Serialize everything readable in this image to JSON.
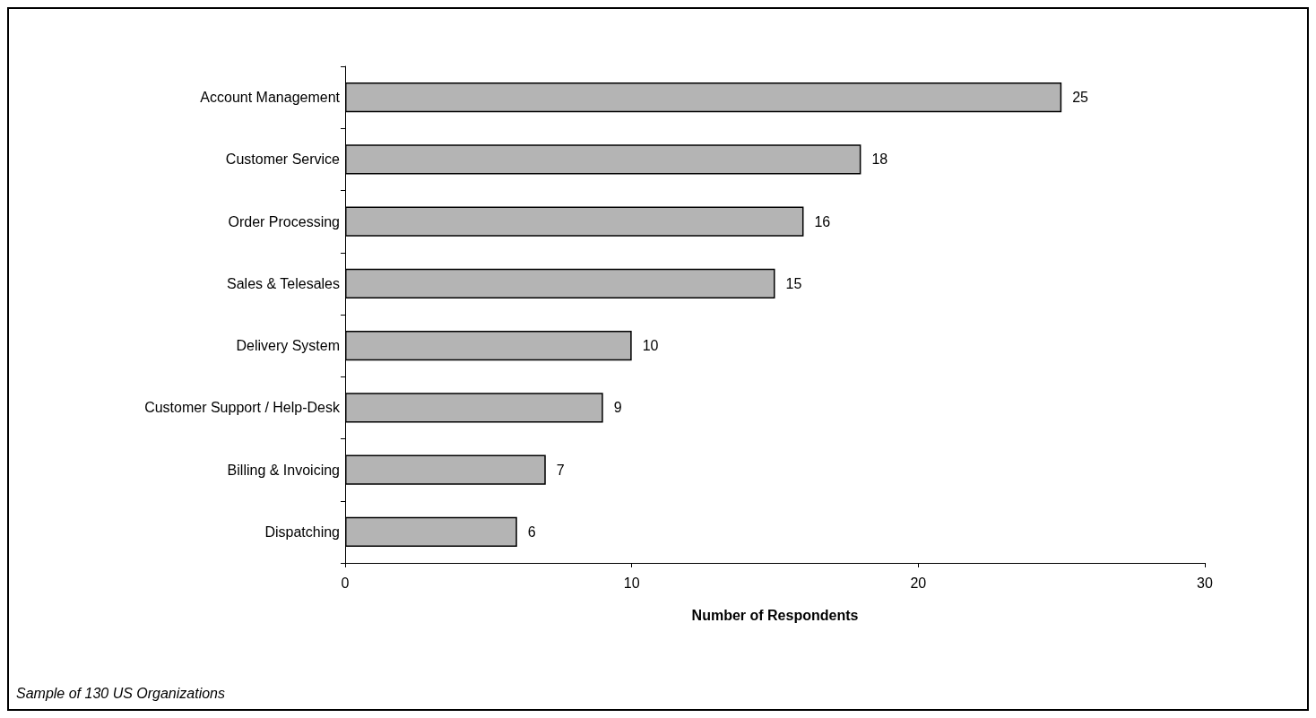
{
  "chart_data": {
    "type": "bar",
    "orientation": "horizontal",
    "categories": [
      "Account Management",
      "Customer Service",
      "Order Processing",
      "Sales & Telesales",
      "Delivery System",
      "Customer Support / Help-Desk",
      "Billing & Invoicing",
      "Dispatching"
    ],
    "values": [
      25,
      18,
      16,
      15,
      10,
      9,
      7,
      6
    ],
    "color": "#b4b4b4",
    "xlim": [
      0,
      30
    ],
    "xticks": [
      0,
      10,
      20,
      30
    ],
    "xlabel": "Number of Respondents",
    "grid": false,
    "data_labels": true,
    "annotations": [
      "Sample of 130 US Organizations"
    ]
  }
}
